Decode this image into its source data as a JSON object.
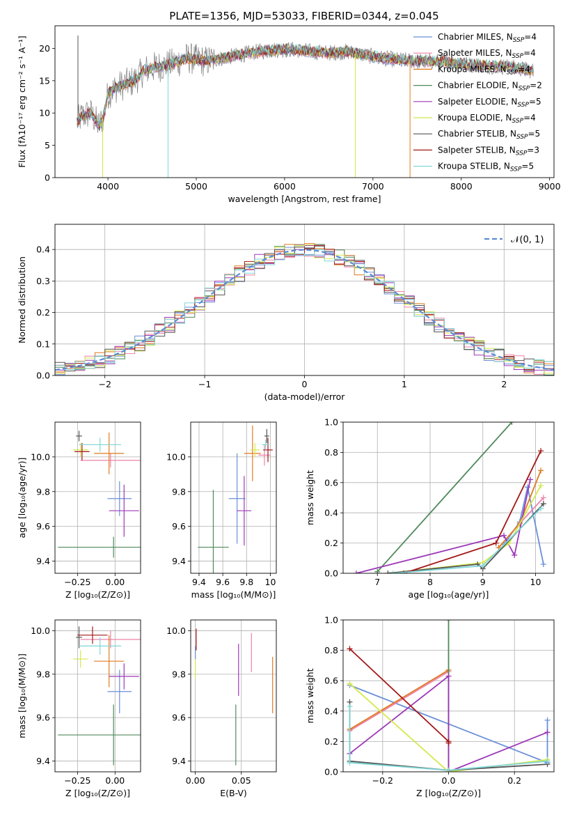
{
  "colors": {
    "Chabrier MILES": "#6a8fd8",
    "Salpeter MILES": "#ee82a8",
    "Kroupa MILES": "#e07a1f",
    "Chabrier ELODIE": "#4f8a5a",
    "Salpeter ELODIE": "#9d36b8",
    "Kroupa ELODIE": "#d4e84a",
    "Chabrier STELIB": "#555555",
    "Salpeter STELIB": "#a31616",
    "Kroupa STELIB": "#7fd6d6"
  },
  "chart_data": [
    {
      "id": "spectrum",
      "type": "line",
      "title": "PLATE=1356, MJD=53033, FIBERID=0344, z=0.045",
      "xlabel": "wavelength [Angstrom, rest frame]",
      "ylabel": "Flux [fλ10⁻¹⁷ erg cm⁻² s⁻¹ A⁻¹]",
      "xlim": [
        3400,
        9050
      ],
      "ylim": [
        0,
        23.5
      ],
      "xticks": [
        4000,
        5000,
        6000,
        7000,
        8000,
        9000
      ],
      "yticks": [
        0,
        5,
        10,
        15,
        20
      ],
      "grid": false,
      "legend_position": "top-right",
      "legend": [
        {
          "series": "Chabrier MILES",
          "label": "Chabrier MILES, N",
          "sub": "SSP",
          "tail": "=4"
        },
        {
          "series": "Salpeter MILES",
          "label": "Salpeter MILES, N",
          "sub": "SSP",
          "tail": "=4"
        },
        {
          "series": "Kroupa MILES",
          "label": "Kroupa MILES, N",
          "sub": "SSP",
          "tail": "=4"
        },
        {
          "series": "Chabrier ELODIE",
          "label": "Chabrier ELODIE, N",
          "sub": "SSP",
          "tail": "=2"
        },
        {
          "series": "Salpeter ELODIE",
          "label": "Salpeter ELODIE, N",
          "sub": "SSP",
          "tail": "=5"
        },
        {
          "series": "Kroupa ELODIE",
          "label": "Kroupa ELODIE, N",
          "sub": "SSP",
          "tail": "=4"
        },
        {
          "series": "Chabrier STELIB",
          "label": "Chabrier STELIB, N",
          "sub": "SSP",
          "tail": "=5"
        },
        {
          "series": "Salpeter STELIB",
          "label": "Salpeter STELIB, N",
          "sub": "SSP",
          "tail": "=3"
        },
        {
          "series": "Kroupa STELIB",
          "label": "Kroupa STELIB, N",
          "sub": "SSP",
          "tail": "=5"
        }
      ],
      "data_color": "#808080",
      "continuum": [
        [
          3650,
          8.5
        ],
        [
          3700,
          9.5
        ],
        [
          3800,
          10
        ],
        [
          3900,
          8
        ],
        [
          3950,
          9.5
        ],
        [
          4000,
          13
        ],
        [
          4100,
          14
        ],
        [
          4200,
          14.5
        ],
        [
          4300,
          15
        ],
        [
          4400,
          16.5
        ],
        [
          4500,
          17
        ],
        [
          4700,
          17.5
        ],
        [
          4900,
          18.5
        ],
        [
          5100,
          18
        ],
        [
          5300,
          18.5
        ],
        [
          5500,
          19
        ],
        [
          5700,
          19.5
        ],
        [
          5900,
          19.8
        ],
        [
          6100,
          19.8
        ],
        [
          6300,
          19.5
        ],
        [
          6500,
          19.3
        ],
        [
          6700,
          19.5
        ],
        [
          6900,
          19
        ],
        [
          7100,
          18.5
        ],
        [
          7300,
          18.2
        ],
        [
          7500,
          18
        ],
        [
          7700,
          18
        ],
        [
          7900,
          17.8
        ],
        [
          8100,
          17.5
        ],
        [
          8300,
          17.3
        ],
        [
          8500,
          17.2
        ],
        [
          8700,
          16.8
        ],
        [
          8820,
          16.5
        ]
      ],
      "spikes": [
        {
          "series": "Kroupa STELIB",
          "x": 4680,
          "y": 0
        },
        {
          "series": "Kroupa ELODIE",
          "x": 6800,
          "y": 0
        },
        {
          "series": "Kroupa MILES",
          "x": 7420,
          "y": 0
        },
        {
          "series": "Kroupa ELODIE",
          "x": 3940,
          "y": 0
        },
        {
          "series": "Chabrier STELIB",
          "x": 3660,
          "y": 22
        }
      ]
    },
    {
      "id": "residuals",
      "type": "histogram",
      "xlabel": "(data-model)/error",
      "ylabel": "Normed distribution",
      "xlim": [
        -2.5,
        2.5
      ],
      "ylim": [
        0,
        0.48
      ],
      "xticks": [
        -2,
        -1,
        0,
        1,
        2
      ],
      "xtick_labels": [
        "−2",
        "−1",
        "0",
        "1",
        "2"
      ],
      "yticks": [
        0.0,
        0.1,
        0.2,
        0.3,
        0.4
      ],
      "grid": true,
      "bin_width": 0.1,
      "reference": {
        "label": "𝒩(0, 1)",
        "color": "#5b8bd6",
        "style": "dashed"
      },
      "legend_position": "top-right"
    },
    {
      "id": "age-vs-z",
      "type": "errorbar",
      "xlabel": "Z [log₁₀(Z/Z⊙)]",
      "ylabel": "age  [log₁₀(age/yr)]",
      "xlim": [
        -0.4,
        0.17
      ],
      "ylim": [
        9.33,
        10.2
      ],
      "xticks": [
        -0.25,
        0.0
      ],
      "xtick_labels": [
        "−0.25",
        "0.00"
      ],
      "yticks": [
        9.4,
        9.6,
        9.8,
        10.0
      ],
      "grid": true,
      "points": [
        {
          "series": "Chabrier MILES",
          "x": 0.03,
          "y": 9.76,
          "xerr": 0.08,
          "yerr": 0.1
        },
        {
          "series": "Salpeter MILES",
          "x": -0.03,
          "y": 9.98,
          "xerr": 0.2,
          "yerr": 0.04
        },
        {
          "series": "Kroupa MILES",
          "x": -0.04,
          "y": 10.02,
          "xerr": 0.1,
          "yerr": 0.12
        },
        {
          "series": "Chabrier ELODIE",
          "x": -0.01,
          "y": 9.48,
          "xerr": 0.37,
          "yerr": 0.06
        },
        {
          "series": "Salpeter ELODIE",
          "x": 0.06,
          "y": 9.69,
          "xerr": 0.1,
          "yerr": 0.15
        },
        {
          "series": "Kroupa ELODIE",
          "x": -0.23,
          "y": 10.04,
          "xerr": 0.05,
          "yerr": 0.04
        },
        {
          "series": "Chabrier STELIB",
          "x": -0.24,
          "y": 10.12,
          "xerr": 0.02,
          "yerr": 0.03
        },
        {
          "series": "Salpeter STELIB",
          "x": -0.22,
          "y": 10.03,
          "xerr": 0.05,
          "yerr": 0.05
        },
        {
          "series": "Kroupa STELIB",
          "x": -0.1,
          "y": 10.07,
          "xerr": 0.14,
          "yerr": 0.04
        }
      ]
    },
    {
      "id": "age-vs-mass",
      "type": "errorbar",
      "xlabel": "mass [log₁₀(M/M⊙)]",
      "ylabel": "",
      "xlim": [
        9.33,
        10.05
      ],
      "ylim": [
        9.33,
        10.2
      ],
      "xticks": [
        9.4,
        9.6,
        9.8,
        10.0
      ],
      "yticks": [
        9.4,
        9.6,
        9.8,
        10.0
      ],
      "grid": true,
      "points": [
        {
          "series": "Chabrier MILES",
          "x": 9.72,
          "y": 9.76,
          "xerr": 0.07,
          "yerr": 0.26
        },
        {
          "series": "Salpeter MILES",
          "x": 9.95,
          "y": 10.01,
          "xerr": 0.05,
          "yerr": 0.06
        },
        {
          "series": "Kroupa MILES",
          "x": 9.85,
          "y": 10.02,
          "xerr": 0.07,
          "yerr": 0.16
        },
        {
          "series": "Chabrier ELODIE",
          "x": 9.52,
          "y": 9.48,
          "xerr": 0.13,
          "yerr": 0.33
        },
        {
          "series": "Salpeter ELODIE",
          "x": 9.78,
          "y": 9.69,
          "xerr": 0.06,
          "yerr": 0.2
        },
        {
          "series": "Kroupa ELODIE",
          "x": 9.87,
          "y": 10.04,
          "xerr": 0.04,
          "yerr": 0.04
        },
        {
          "series": "Chabrier STELIB",
          "x": 9.97,
          "y": 10.12,
          "xerr": 0.02,
          "yerr": 0.04
        },
        {
          "series": "Salpeter STELIB",
          "x": 9.98,
          "y": 10.04,
          "xerr": 0.04,
          "yerr": 0.07
        },
        {
          "series": "Kroupa STELIB",
          "x": 9.96,
          "y": 10.07,
          "xerr": 0.03,
          "yerr": 0.03
        }
      ]
    },
    {
      "id": "weight-vs-age",
      "type": "line",
      "xlabel": "age  [log₁₀(age/yr)]",
      "ylabel": "mass weight",
      "xlim": [
        6.35,
        10.35
      ],
      "ylim": [
        0,
        1.0
      ],
      "xticks": [
        7,
        8,
        9,
        10
      ],
      "yticks": [
        0.0,
        0.2,
        0.4,
        0.6,
        0.8,
        1.0
      ],
      "grid": true,
      "series": [
        {
          "series": "Chabrier MILES",
          "points": [
            [
              9.4,
              0.19
            ],
            [
              9.7,
              0.34
            ],
            [
              9.85,
              0.57
            ],
            [
              10.15,
              0.06
            ]
          ]
        },
        {
          "series": "Salpeter MILES",
          "points": [
            [
              9.3,
              0.17
            ],
            [
              9.7,
              0.33
            ],
            [
              10.15,
              0.5
            ]
          ]
        },
        {
          "series": "Kroupa MILES",
          "points": [
            [
              9.3,
              0.17
            ],
            [
              9.7,
              0.33
            ],
            [
              10.1,
              0.68
            ]
          ]
        },
        {
          "series": "Chabrier ELODIE",
          "points": [
            [
              7.0,
              0.01
            ],
            [
              9.55,
              1.0
            ]
          ]
        },
        {
          "series": "Salpeter ELODIE",
          "points": [
            [
              6.6,
              0.0
            ],
            [
              9.4,
              0.25
            ],
            [
              9.6,
              0.12
            ],
            [
              9.9,
              0.62
            ]
          ]
        },
        {
          "series": "Kroupa ELODIE",
          "points": [
            [
              7.2,
              0.0
            ],
            [
              9.0,
              0.07
            ],
            [
              9.5,
              0.2
            ],
            [
              10.1,
              0.58
            ]
          ]
        },
        {
          "series": "Chabrier STELIB",
          "points": [
            [
              7.2,
              0.0
            ],
            [
              8.9,
              0.06
            ],
            [
              9.0,
              0.03
            ],
            [
              10.15,
              0.46
            ]
          ]
        },
        {
          "series": "Salpeter STELIB",
          "points": [
            [
              7.5,
              0.0
            ],
            [
              9.25,
              0.2
            ],
            [
              10.1,
              0.81
            ]
          ]
        },
        {
          "series": "Kroupa STELIB",
          "points": [
            [
              7.3,
              0.0
            ],
            [
              9.0,
              0.05
            ],
            [
              10.1,
              0.43
            ]
          ]
        }
      ]
    },
    {
      "id": "mass-vs-z",
      "type": "errorbar",
      "xlabel": "Z [log₁₀(Z/Z⊙)]",
      "ylabel": "mass [log₁₀(M/M⊙)]",
      "xlim": [
        -0.4,
        0.17
      ],
      "ylim": [
        9.35,
        10.05
      ],
      "xticks": [
        -0.25,
        0.0
      ],
      "xtick_labels": [
        "−0.25",
        "0.00"
      ],
      "yticks": [
        9.4,
        9.6,
        9.8,
        10.0
      ],
      "grid": true,
      "points": [
        {
          "series": "Chabrier MILES",
          "x": 0.03,
          "y": 9.72,
          "xerr": 0.08,
          "yerr": 0.1
        },
        {
          "series": "Salpeter MILES",
          "x": -0.03,
          "y": 9.96,
          "xerr": 0.2,
          "yerr": 0.04
        },
        {
          "series": "Kroupa MILES",
          "x": -0.04,
          "y": 9.86,
          "xerr": 0.1,
          "yerr": 0.12
        },
        {
          "series": "Chabrier ELODIE",
          "x": -0.01,
          "y": 9.52,
          "xerr": 0.37,
          "yerr": 0.14
        },
        {
          "series": "Salpeter ELODIE",
          "x": 0.06,
          "y": 9.79,
          "xerr": 0.1,
          "yerr": 0.06
        },
        {
          "series": "Kroupa ELODIE",
          "x": -0.23,
          "y": 9.87,
          "xerr": 0.05,
          "yerr": 0.04
        },
        {
          "series": "Chabrier STELIB",
          "x": -0.24,
          "y": 9.97,
          "xerr": 0.02,
          "yerr": 0.05
        },
        {
          "series": "Salpeter STELIB",
          "x": -0.15,
          "y": 9.98,
          "xerr": 0.1,
          "yerr": 0.04
        },
        {
          "series": "Kroupa STELIB",
          "x": -0.1,
          "y": 9.93,
          "xerr": 0.14,
          "yerr": 0.04
        }
      ]
    },
    {
      "id": "mass-vs-ebv",
      "type": "errorbar",
      "xlabel": "E(B-V)",
      "ylabel": "",
      "xlim": [
        -0.005,
        0.088
      ],
      "ylim": [
        9.35,
        10.05
      ],
      "xticks": [
        0.0,
        0.05
      ],
      "xtick_labels": [
        "0.00",
        "0.05"
      ],
      "yticks": [
        9.4,
        9.6,
        9.8,
        10.0
      ],
      "grid": true,
      "points": [
        {
          "series": "Chabrier ELODIE",
          "x": 0.044,
          "y": 9.52,
          "xerr": 0,
          "yerr": 0.14
        },
        {
          "series": "Salpeter ELODIE",
          "x": 0.047,
          "y": 9.82,
          "xerr": 0,
          "yerr": 0.12
        },
        {
          "series": "Salpeter MILES",
          "x": 0.061,
          "y": 9.9,
          "xerr": 0,
          "yerr": 0.09
        },
        {
          "series": "Kroupa MILES",
          "x": 0.084,
          "y": 9.75,
          "xerr": 0,
          "yerr": 0.13
        },
        {
          "series": "Kroupa ELODIE",
          "x": 0.0,
          "y": 9.85,
          "xerr": 0,
          "yerr": 0.07
        },
        {
          "series": "Salpeter STELIB",
          "x": 0.001,
          "y": 9.96,
          "xerr": 0,
          "yerr": 0.05
        },
        {
          "series": "Chabrier MILES",
          "x": 0.0,
          "y": 9.9,
          "xerr": 0,
          "yerr": 0.03
        }
      ]
    },
    {
      "id": "weight-vs-z",
      "type": "line",
      "xlabel": "Z [log₁₀(Z/Z⊙)]",
      "ylabel": "mass weight",
      "xlim": [
        -0.32,
        0.32
      ],
      "ylim": [
        0,
        1.0
      ],
      "xticks": [
        -0.2,
        0.0,
        0.2
      ],
      "xtick_labels": [
        "−0.2",
        "0.0",
        "0.2"
      ],
      "yticks": [
        0.0,
        0.2,
        0.4,
        0.6,
        0.8,
        1.0
      ],
      "grid": true,
      "series": [
        {
          "series": "Chabrier MILES",
          "points": [
            [
              -0.3,
              0.57
            ],
            [
              0.3,
              0.06
            ],
            [
              0.3,
              0.34
            ]
          ]
        },
        {
          "series": "Salpeter MILES",
          "points": [
            [
              -0.3,
              0.27
            ],
            [
              0.0,
              0.66
            ]
          ]
        },
        {
          "series": "Kroupa MILES",
          "points": [
            [
              -0.3,
              0.28
            ],
            [
              0.0,
              0.67
            ]
          ]
        },
        {
          "series": "Chabrier ELODIE",
          "points": [
            [
              0.0,
              0.0
            ],
            [
              0.0,
              1.0
            ]
          ]
        },
        {
          "series": "Salpeter ELODIE",
          "points": [
            [
              -0.3,
              0.12
            ],
            [
              0.0,
              0.63
            ],
            [
              0.0,
              0.0
            ],
            [
              0.3,
              0.26
            ]
          ]
        },
        {
          "series": "Kroupa ELODIE",
          "points": [
            [
              -0.3,
              0.58
            ],
            [
              0.0,
              0.0
            ],
            [
              0.3,
              0.08
            ]
          ]
        },
        {
          "series": "Chabrier STELIB",
          "points": [
            [
              -0.3,
              0.46
            ],
            [
              -0.3,
              0.07
            ],
            [
              0.0,
              0.01
            ],
            [
              0.3,
              0.05
            ]
          ]
        },
        {
          "series": "Salpeter STELIB",
          "points": [
            [
              -0.3,
              0.81
            ],
            [
              0.0,
              0.2
            ],
            [
              0.0,
              0.19
            ]
          ]
        },
        {
          "series": "Kroupa STELIB",
          "points": [
            [
              -0.3,
              0.43
            ],
            [
              -0.3,
              0.06
            ],
            [
              0.0,
              0.01
            ],
            [
              0.3,
              0.07
            ]
          ]
        }
      ]
    }
  ]
}
